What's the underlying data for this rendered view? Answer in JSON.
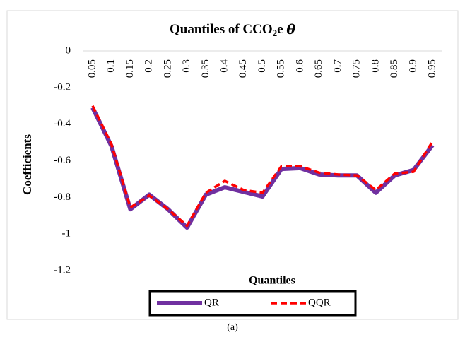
{
  "chart_data": {
    "type": "line",
    "title_parts": [
      "Quantiles of CCO",
      "2",
      "e ",
      "θ"
    ],
    "x_label": "Quantiles",
    "y_label": "Coefficients",
    "caption": "(a)",
    "categories": [
      "0.05",
      "0.1",
      "0.15",
      "0.2",
      "0.25",
      "0.3",
      "0.35",
      "0.4",
      "0.45",
      "0.5",
      "0.55",
      "0.6",
      "0.65",
      "0.7",
      "0.75",
      "0.8",
      "0.85",
      "0.9",
      "0.95"
    ],
    "ylim": [
      -1.2,
      0
    ],
    "yticks": [
      0,
      -0.2,
      -0.4,
      -0.6,
      -0.8,
      -1,
      -1.2
    ],
    "series": [
      {
        "name": "QR",
        "color": "#7030a0",
        "values": [
          -0.31,
          -0.52,
          -0.865,
          -0.785,
          -0.865,
          -0.965,
          -0.785,
          -0.745,
          -0.77,
          -0.795,
          -0.645,
          -0.64,
          -0.675,
          -0.68,
          -0.68,
          -0.775,
          -0.68,
          -0.65,
          -0.515
        ]
      },
      {
        "name": "QQR",
        "color": "#ff0000",
        "values": [
          -0.3,
          -0.51,
          -0.855,
          -0.79,
          -0.865,
          -0.955,
          -0.775,
          -0.71,
          -0.76,
          -0.775,
          -0.63,
          -0.63,
          -0.665,
          -0.675,
          -0.68,
          -0.76,
          -0.67,
          -0.66,
          -0.495
        ]
      }
    ]
  }
}
